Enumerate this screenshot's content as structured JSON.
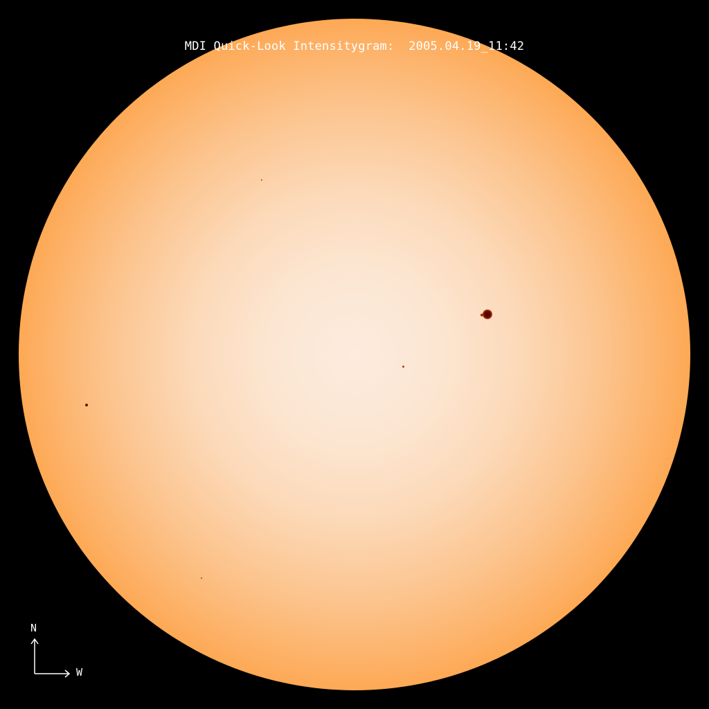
{
  "title": "MDI Quick-Look Intensitygram:  2005.04.19_11:42",
  "compass": {
    "north": "N",
    "west": "W"
  },
  "colors": {
    "background": "#000000",
    "disk_center": "#fdebdd",
    "disk_limb": "#8e1400",
    "text": "#ffffff"
  }
}
